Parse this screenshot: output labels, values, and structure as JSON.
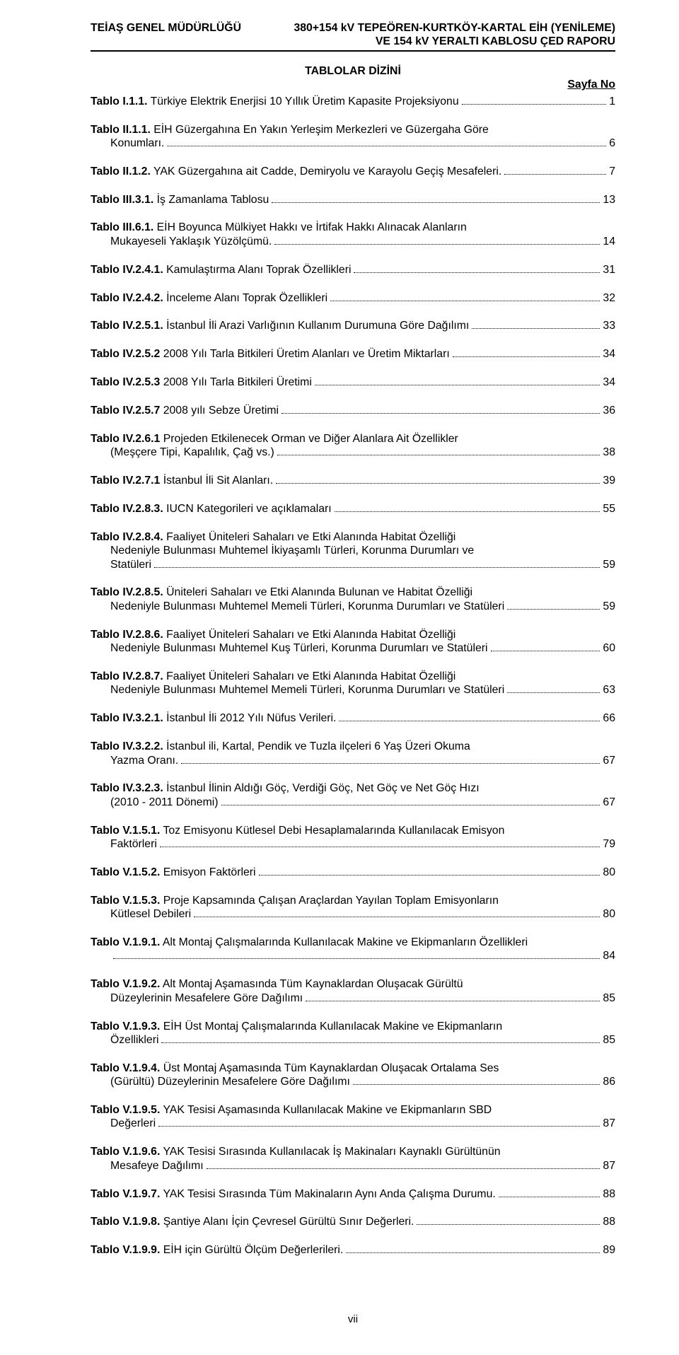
{
  "header": {
    "left": "TEİAŞ GENEL MÜDÜRLÜĞÜ",
    "right": "380+154 kV TEPEÖREN-KURTKÖY-KARTAL EİH (YENİLEME)\nVE 154 kV YERALTI KABLOSU ÇED RAPORU"
  },
  "sectionTitle": "TABLOLAR DİZİNİ",
  "pageLabel": "Sayfa No",
  "footer": "vii",
  "entries": [
    {
      "ref": "Tablo I.1.1.",
      "title": "Türkiye Elektrik Enerjisi 10 Yıllık Üretim Kapasite Projeksiyonu",
      "page": "1"
    },
    {
      "ref": "Tablo II.1.1.",
      "title": "EİH Güzergahına En Yakın Yerleşim Merkezleri ve Güzergaha Göre Konumları.",
      "page": "6",
      "wrap": true
    },
    {
      "ref": "Tablo II.1.2.",
      "title": "YAK Güzergahına ait Cadde, Demiryolu ve Karayolu Geçiş Mesafeleri.",
      "page": "7"
    },
    {
      "ref": "Tablo III.3.1.",
      "title": "İş Zamanlama Tablosu",
      "page": "13"
    },
    {
      "ref": "Tablo III.6.1.",
      "title": "EİH Boyunca Mülkiyet Hakkı ve İrtifak Hakkı Alınacak Alanların Mukayeseli Yaklaşık Yüzölçümü.",
      "page": "14",
      "wrap": true
    },
    {
      "ref": "Tablo IV.2.4.1.",
      "title": "Kamulaştırma Alanı Toprak Özellikleri",
      "page": "31"
    },
    {
      "ref": "Tablo IV.2.4.2.",
      "title": "İnceleme Alanı Toprak Özellikleri",
      "page": "32"
    },
    {
      "ref": "Tablo IV.2.5.1.",
      "title": "İstanbul İli Arazi Varlığının Kullanım Durumuna Göre Dağılımı",
      "page": "33"
    },
    {
      "ref": "Tablo IV.2.5.2",
      "title": "2008 Yılı Tarla Bitkileri Üretim Alanları ve Üretim Miktarları",
      "page": "34"
    },
    {
      "ref": "Tablo IV.2.5.3",
      "title": "2008 Yılı Tarla Bitkileri Üretimi",
      "page": "34"
    },
    {
      "ref": "Tablo IV.2.5.7",
      "title": "2008 yılı Sebze Üretimi",
      "page": "36"
    },
    {
      "ref": "Tablo IV.2.6.1",
      "title": "Projeden Etkilenecek Orman ve Diğer Alanlara Ait Özellikler (Meşçere Tipi, Kapalılık, Çağ vs.)",
      "page": "38",
      "wrap": true
    },
    {
      "ref": "Tablo IV.2.7.1",
      "title": "İstanbul İli Sit Alanları.",
      "page": "39"
    },
    {
      "ref": "Tablo IV.2.8.3.",
      "title": "IUCN Kategorileri ve açıklamaları",
      "page": "55"
    },
    {
      "ref": "Tablo IV.2.8.4.",
      "title": "Faaliyet Üniteleri Sahaları ve Etki Alanında Habitat Özelliği Nedeniyle Bulunması Muhtemel İkiyaşamlı Türleri, Korunma Durumları ve Statüleri",
      "page": "59",
      "wrap": true
    },
    {
      "ref": "Tablo IV.2.8.5.",
      "title": "Üniteleri Sahaları ve Etki Alanında Bulunan ve Habitat Özelliği Nedeniyle Bulunması Muhtemel Memeli Türleri, Korunma Durumları ve Statüleri",
      "page": "59",
      "wrap": true
    },
    {
      "ref": "Tablo IV.2.8.6.",
      "title": "Faaliyet Üniteleri Sahaları ve Etki Alanında Habitat Özelliği Nedeniyle Bulunması Muhtemel Kuş Türleri, Korunma Durumları ve Statüleri",
      "page": "60",
      "wrap": true
    },
    {
      "ref": "Tablo IV.2.8.7.",
      "title": "Faaliyet Üniteleri Sahaları ve Etki Alanında Habitat Özelliği Nedeniyle Bulunması Muhtemel Memeli Türleri, Korunma Durumları ve Statüleri",
      "page": "63",
      "wrap": true
    },
    {
      "ref": "Tablo IV.3.2.1.",
      "title": "İstanbul  İli 2012 Yılı Nüfus Verileri.",
      "page": "66"
    },
    {
      "ref": "Tablo IV.3.2.2.",
      "title": "İstanbul ili, Kartal, Pendik ve Tuzla ilçeleri 6 Yaş Üzeri Okuma Yazma Oranı.",
      "page": "67",
      "wrap": true
    },
    {
      "ref": "Tablo IV.3.2.3.",
      "title": "İstanbul İlinin Aldığı Göç, Verdiği Göç, Net Göç ve Net Göç Hızı (2010 - 2011 Dönemi)",
      "page": "67",
      "wrap": true
    },
    {
      "ref": "Tablo V.1.5.1.",
      "title": "Toz Emisyonu Kütlesel Debi Hesaplamalarında Kullanılacak Emisyon Faktörleri",
      "page": "79",
      "wrap": true
    },
    {
      "ref": "Tablo V.1.5.2.",
      "title": "Emisyon Faktörleri",
      "page": "80"
    },
    {
      "ref": "Tablo V.1.5.3.",
      "title": "Proje Kapsamında Çalışan Araçlardan Yayılan Toplam Emisyonların Kütlesel Debileri",
      "page": "80",
      "wrap": true
    },
    {
      "ref": "Tablo V.1.9.1.",
      "title": "Alt Montaj Çalışmalarında Kullanılacak Makine ve Ekipmanların Özellikleri",
      "page": "84",
      "wrapBlank": true
    },
    {
      "ref": "Tablo V.1.9.2.",
      "title": "Alt Montaj Aşamasında Tüm Kaynaklardan Oluşacak Gürültü Düzeylerinin Mesafelere Göre Dağılımı",
      "page": "85",
      "wrap": true
    },
    {
      "ref": "Tablo V.1.9.3.",
      "title": "EİH Üst Montaj Çalışmalarında Kullanılacak Makine ve Ekipmanların Özellikleri",
      "page": "85",
      "wrap": true
    },
    {
      "ref": "Tablo V.1.9.4.",
      "title": "Üst Montaj Aşamasında Tüm Kaynaklardan Oluşacak Ortalama Ses (Gürültü) Düzeylerinin Mesafelere Göre Dağılımı",
      "page": "86",
      "wrap": true
    },
    {
      "ref": "Tablo V.1.9.5.",
      "title": "YAK Tesisi Aşamasında Kullanılacak Makine ve Ekipmanların SBD Değerleri",
      "page": "87",
      "wrap": true
    },
    {
      "ref": "Tablo V.1.9.6.",
      "title": "YAK Tesisi Sırasında Kullanılacak İş Makinaları Kaynaklı Gürültünün Mesafeye Dağılımı",
      "page": "87",
      "wrap": true
    },
    {
      "ref": "Tablo V.1.9.7.",
      "title": "YAK Tesisi Sırasında Tüm Makinaların Aynı Anda Çalışma Durumu.",
      "page": "88"
    },
    {
      "ref": "Tablo V.1.9.8.",
      "title": "Şantiye Alanı İçin Çevresel Gürültü Sınır Değerleri.",
      "page": "88"
    },
    {
      "ref": "Tablo V.1.9.9.",
      "title": "EİH için Gürültü Ölçüm Değerlerileri.",
      "page": "89"
    }
  ]
}
